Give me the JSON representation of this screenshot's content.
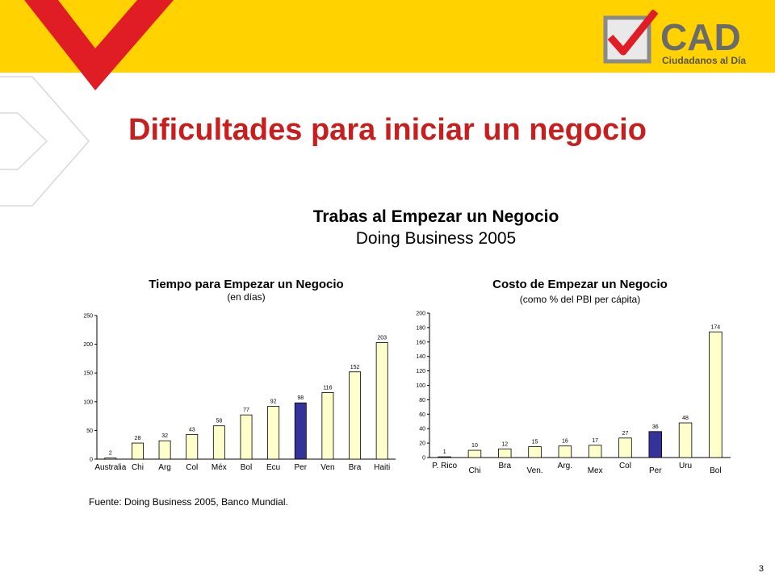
{
  "slide": {
    "title": "Dificultades para iniciar un negocio",
    "main_title": "Trabas al Empezar un Negocio",
    "main_subtitle": "Doing Business 2005",
    "source": "Fuente: Doing Business 2005, Banco Mundial.",
    "page_number": "3"
  },
  "logo": {
    "text": "CAD",
    "tagline": "Ciudadanos al Día"
  },
  "colors": {
    "banner": "#ffd200",
    "title": "#c81e1e",
    "bar_default": "#ffffcc",
    "bar_highlight": "#333399",
    "chevron_red": "#e01c24"
  },
  "chart_data": [
    {
      "type": "bar",
      "title": "Tiempo para Empezar un Negocio",
      "subtitle": "(en días)",
      "categories": [
        "Australia",
        "Chi",
        "Arg",
        "Col",
        "Méx",
        "Bol",
        "Ecu",
        "Per",
        "Ven",
        "Bra",
        "Haiti"
      ],
      "values": [
        2,
        28,
        32,
        43,
        58,
        77,
        92,
        98,
        116,
        152,
        203
      ],
      "highlight": "Per",
      "ylim": [
        0,
        250
      ],
      "yticks": [
        0,
        50,
        100,
        150,
        200,
        250
      ],
      "grid": false
    },
    {
      "type": "bar",
      "title": "Costo de Empezar un Negocio",
      "subtitle": "(como % del PBI per cápita)",
      "categories": [
        "P. Rico",
        "Chi",
        "Bra",
        "Ven.",
        "Arg.",
        "Mex",
        "Col",
        "Per",
        "Uru",
        "Bol"
      ],
      "values": [
        1,
        10,
        12,
        15,
        16,
        17,
        27,
        36,
        48,
        174
      ],
      "highlight": "Per",
      "ylim": [
        0,
        200
      ],
      "yticks": [
        0,
        20,
        40,
        60,
        80,
        100,
        120,
        140,
        160,
        180,
        200
      ],
      "grid": false
    }
  ]
}
